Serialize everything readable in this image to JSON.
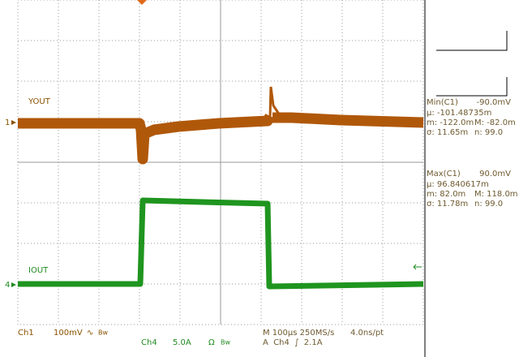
{
  "traces": {
    "ch1_label": "YOUT",
    "ch1_marker": "1",
    "ch4_label": "IOUT",
    "ch4_marker": "4"
  },
  "measurements": [
    {
      "title": "Min(C1)",
      "value": "-90.0mV",
      "mean": "µ: -101.48735m",
      "min": "m: -122.0m",
      "max": "M: -82.0m",
      "sigma": "σ: 11.65m",
      "n": "n: 99.0"
    },
    {
      "title": "Max(C1)",
      "value": "90.0mV",
      "mean": "µ: 96.840617m",
      "min": "m: 82.0m",
      "max": "M: 118.0m",
      "sigma": "σ: 11.78m",
      "n": "n: 99.0"
    }
  ],
  "status": {
    "ch1": "Ch1",
    "ch1_scale": "100mV",
    "ch1_coupling": "∿",
    "ch1_bw": "Bw",
    "ch4": "Ch4",
    "ch4_scale": "5.0A",
    "ch4_coupling": "Ω",
    "ch4_bw": "Bw",
    "timebase": "M 100µs 250MS/s",
    "resolution": "4.0ns/pt",
    "trigger": "A  Ch4  ∫  2.1A"
  }
}
